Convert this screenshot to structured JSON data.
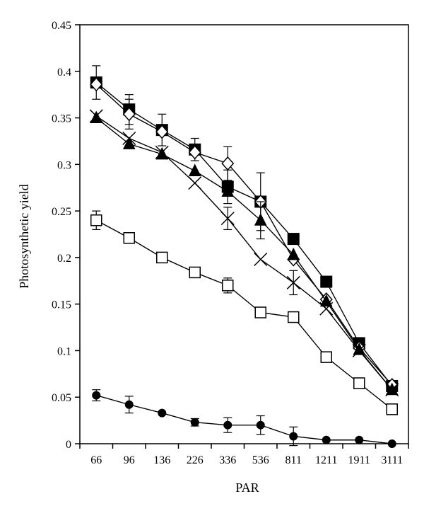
{
  "chart_data": {
    "type": "line",
    "title": "",
    "xlabel": "PAR",
    "ylabel": "Photosynthetic yield",
    "categories": [
      "66",
      "96",
      "136",
      "226",
      "336",
      "536",
      "811",
      "1211",
      "1911",
      "3111"
    ],
    "ylim": [
      0,
      0.45
    ],
    "yticks": [
      "0",
      "0.05",
      "0.1",
      "0.15",
      "0.2",
      "0.25",
      "0.3",
      "0.35",
      "0.4",
      "0.45"
    ],
    "grid": false,
    "legend": "none",
    "series": [
      {
        "marker": "filled-square",
        "values": [
          0.388,
          0.359,
          0.337,
          0.316,
          0.276,
          0.26,
          0.22,
          0.174,
          0.108,
          0.062
        ],
        "errors": [
          0.018,
          0.016,
          0.017,
          0.012,
          0.018,
          0.031,
          0.0,
          0.0,
          0.0,
          0.0
        ]
      },
      {
        "marker": "open-diamond",
        "values": [
          0.386,
          0.354,
          0.335,
          0.313,
          0.301,
          0.26,
          0.198,
          0.155,
          0.103,
          0.063
        ],
        "errors": [
          0.0,
          0.016,
          0.0,
          0.0,
          0.018,
          0.0,
          0.0,
          0.0,
          0.0,
          0.0
        ]
      },
      {
        "marker": "filled-triangle",
        "values": [
          0.35,
          0.322,
          0.311,
          0.293,
          0.271,
          0.24,
          0.203,
          0.153,
          0.101,
          0.058
        ],
        "errors": [
          0.0,
          0.0,
          0.0,
          0.0,
          0.0,
          0.02,
          0.0,
          0.0,
          0.0,
          0.0
        ]
      },
      {
        "marker": "x-cross",
        "values": [
          0.352,
          0.328,
          0.313,
          0.28,
          0.242,
          0.198,
          0.173,
          0.145,
          0.1,
          0.058
        ],
        "errors": [
          0.0,
          0.0,
          0.0,
          0.0,
          0.012,
          0.0,
          0.013,
          0.0,
          0.0,
          0.0
        ]
      },
      {
        "marker": "open-square",
        "values": [
          0.24,
          0.221,
          0.2,
          0.184,
          0.17,
          0.141,
          0.136,
          0.093,
          0.065,
          0.037
        ],
        "errors": [
          0.01,
          0.0,
          0.0,
          0.0,
          0.008,
          0.0,
          0.0,
          0.0,
          0.0,
          0.0
        ]
      },
      {
        "marker": "filled-circle",
        "values": [
          0.052,
          0.042,
          0.033,
          0.023,
          0.02,
          0.02,
          0.008,
          0.004,
          0.004,
          0.0
        ],
        "errors": [
          0.006,
          0.009,
          0.0,
          0.004,
          0.008,
          0.01,
          0.01,
          0.0,
          0.0,
          0.0
        ]
      }
    ]
  }
}
